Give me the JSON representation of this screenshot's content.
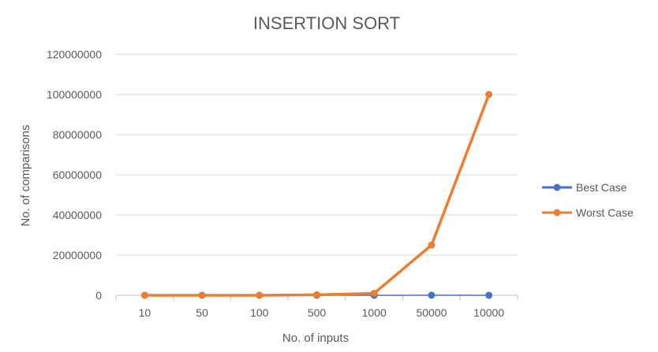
{
  "chart_data": {
    "type": "line",
    "title": "INSERTION SORT",
    "xlabel": "No. of inputs",
    "ylabel": "No. of comparisons",
    "categories": [
      "10",
      "50",
      "100",
      "500",
      "1000",
      "50000",
      "10000"
    ],
    "ylim": [
      0,
      120000000
    ],
    "yticks": [
      0,
      20000000,
      40000000,
      60000000,
      80000000,
      100000000,
      120000000
    ],
    "grid": true,
    "legend_position": "right",
    "series": [
      {
        "name": "Best Case",
        "color": "#4472C4",
        "values": [
          10,
          50,
          100,
          500,
          1000,
          50000,
          10000
        ]
      },
      {
        "name": "Worst Case",
        "color": "#ED7D31",
        "values": [
          100,
          2500,
          10000,
          250000,
          1000000,
          25000000,
          100000000
        ]
      }
    ]
  }
}
